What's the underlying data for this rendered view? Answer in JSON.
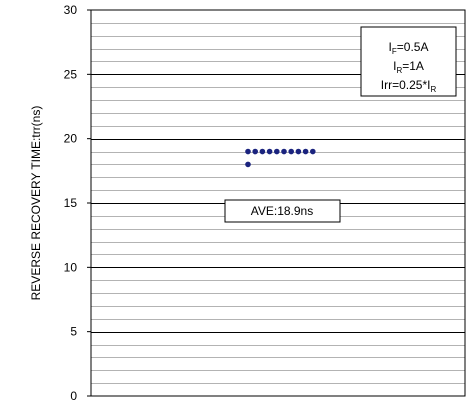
{
  "chart_data": {
    "type": "scatter",
    "title": "",
    "xlabel": "",
    "ylabel": "REVERSE RECOVERY TIME:trr(ns)",
    "ylim": [
      0,
      30
    ],
    "y_ticks": [
      0,
      5,
      10,
      15,
      20,
      25,
      30
    ],
    "y_tick_labels": [
      "0",
      "5",
      "10",
      "15",
      "20",
      "25",
      "30"
    ],
    "minor_gridline_step": 1,
    "grid": true,
    "points": [
      {
        "x": 1,
        "y": 18
      },
      {
        "x": 1,
        "y": 19
      },
      {
        "x": 2,
        "y": 19
      },
      {
        "x": 3,
        "y": 19
      },
      {
        "x": 4,
        "y": 19
      },
      {
        "x": 5,
        "y": 19
      },
      {
        "x": 6,
        "y": 19
      },
      {
        "x": 7,
        "y": 19
      },
      {
        "x": 8,
        "y": 19
      },
      {
        "x": 9,
        "y": 19
      },
      {
        "x": 10,
        "y": 19
      }
    ],
    "point_color": "#1a237e",
    "conditions": {
      "if": {
        "main": "I",
        "sub": "F",
        "rest": "=0.5A"
      },
      "ir": {
        "main": "I",
        "sub": "R",
        "rest": "=1A"
      },
      "irr": {
        "main": "Irr=0.25*I",
        "sub": "R",
        "rest": ""
      }
    },
    "annotation": "AVE:18.9ns",
    "legend_position": "top-right"
  }
}
